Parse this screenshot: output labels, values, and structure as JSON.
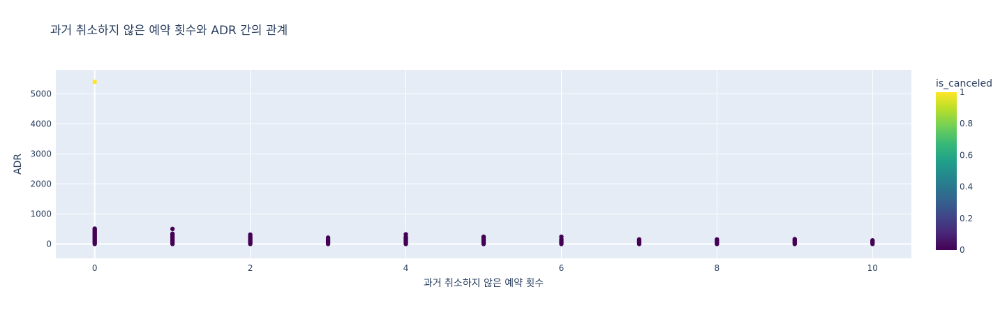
{
  "chart_data": {
    "type": "scatter",
    "title": "과거 취소하지 않은 예약 횟수와 ADR 간의 관계",
    "xlabel": "과거 취소하지 않은 예약 횟수",
    "ylabel": "ADR",
    "xlim": [
      -0.5,
      10.5
    ],
    "ylim": [
      -480,
      5800
    ],
    "xticks": [
      0,
      2,
      4,
      6,
      8,
      10
    ],
    "yticks": [
      0,
      1000,
      2000,
      3000,
      4000,
      5000
    ],
    "grid": true,
    "colorbar": {
      "title": "is_canceled",
      "range": [
        0,
        1
      ],
      "ticks": [
        0,
        0.2,
        0.4,
        0.6,
        0.8,
        1
      ],
      "tick_labels": [
        "0",
        "0.2",
        "0.4",
        "0.6",
        "0.8",
        "1"
      ],
      "colorscale": "Viridis"
    },
    "colors": {
      "plot_bg": "#e5ecf6",
      "grid": "#ffffff",
      "text": "#2a3f5f"
    },
    "points": [
      {
        "x": 0,
        "y": 5400,
        "c": 1
      },
      {
        "x": 0,
        "y": 0,
        "c": 0
      },
      {
        "x": 0,
        "y": 40,
        "c": 0
      },
      {
        "x": 0,
        "y": 80,
        "c": 0
      },
      {
        "x": 0,
        "y": 120,
        "c": 0
      },
      {
        "x": 0,
        "y": 160,
        "c": 0
      },
      {
        "x": 0,
        "y": 200,
        "c": 0
      },
      {
        "x": 0,
        "y": 240,
        "c": 0
      },
      {
        "x": 0,
        "y": 280,
        "c": 0
      },
      {
        "x": 0,
        "y": 320,
        "c": 0
      },
      {
        "x": 0,
        "y": 360,
        "c": 0
      },
      {
        "x": 0,
        "y": 400,
        "c": 0
      },
      {
        "x": 0,
        "y": 440,
        "c": 0
      },
      {
        "x": 0,
        "y": 480,
        "c": 0
      },
      {
        "x": 0,
        "y": 510,
        "c": 0
      },
      {
        "x": 1,
        "y": 0,
        "c": 0
      },
      {
        "x": 1,
        "y": 50,
        "c": 0
      },
      {
        "x": 1,
        "y": 100,
        "c": 0
      },
      {
        "x": 1,
        "y": 150,
        "c": 0
      },
      {
        "x": 1,
        "y": 200,
        "c": 0
      },
      {
        "x": 1,
        "y": 250,
        "c": 0
      },
      {
        "x": 1,
        "y": 300,
        "c": 0
      },
      {
        "x": 1,
        "y": 340,
        "c": 0
      },
      {
        "x": 1,
        "y": 500,
        "c": 0
      },
      {
        "x": 2,
        "y": 0,
        "c": 0
      },
      {
        "x": 2,
        "y": 40,
        "c": 0
      },
      {
        "x": 2,
        "y": 80,
        "c": 0
      },
      {
        "x": 2,
        "y": 120,
        "c": 0
      },
      {
        "x": 2,
        "y": 160,
        "c": 0
      },
      {
        "x": 2,
        "y": 200,
        "c": 0
      },
      {
        "x": 2,
        "y": 250,
        "c": 0
      },
      {
        "x": 2,
        "y": 310,
        "c": 0
      },
      {
        "x": 3,
        "y": 0,
        "c": 0
      },
      {
        "x": 3,
        "y": 40,
        "c": 0
      },
      {
        "x": 3,
        "y": 80,
        "c": 0
      },
      {
        "x": 3,
        "y": 120,
        "c": 0
      },
      {
        "x": 3,
        "y": 160,
        "c": 0
      },
      {
        "x": 3,
        "y": 210,
        "c": 0
      },
      {
        "x": 4,
        "y": 0,
        "c": 0
      },
      {
        "x": 4,
        "y": 40,
        "c": 0
      },
      {
        "x": 4,
        "y": 80,
        "c": 0
      },
      {
        "x": 4,
        "y": 120,
        "c": 0
      },
      {
        "x": 4,
        "y": 160,
        "c": 0
      },
      {
        "x": 4,
        "y": 200,
        "c": 0
      },
      {
        "x": 4,
        "y": 230,
        "c": 0
      },
      {
        "x": 4,
        "y": 320,
        "c": 0
      },
      {
        "x": 5,
        "y": 0,
        "c": 0
      },
      {
        "x": 5,
        "y": 40,
        "c": 0
      },
      {
        "x": 5,
        "y": 80,
        "c": 0
      },
      {
        "x": 5,
        "y": 120,
        "c": 0
      },
      {
        "x": 5,
        "y": 160,
        "c": 0
      },
      {
        "x": 5,
        "y": 200,
        "c": 0
      },
      {
        "x": 5,
        "y": 240,
        "c": 0
      },
      {
        "x": 6,
        "y": 0,
        "c": 0
      },
      {
        "x": 6,
        "y": 40,
        "c": 0
      },
      {
        "x": 6,
        "y": 80,
        "c": 0
      },
      {
        "x": 6,
        "y": 120,
        "c": 0
      },
      {
        "x": 6,
        "y": 160,
        "c": 0
      },
      {
        "x": 6,
        "y": 240,
        "c": 0
      },
      {
        "x": 7,
        "y": 0,
        "c": 0
      },
      {
        "x": 7,
        "y": 40,
        "c": 0
      },
      {
        "x": 7,
        "y": 80,
        "c": 0
      },
      {
        "x": 7,
        "y": 120,
        "c": 0
      },
      {
        "x": 7,
        "y": 150,
        "c": 0
      },
      {
        "x": 8,
        "y": 0,
        "c": 0
      },
      {
        "x": 8,
        "y": 40,
        "c": 0
      },
      {
        "x": 8,
        "y": 80,
        "c": 0
      },
      {
        "x": 8,
        "y": 120,
        "c": 0
      },
      {
        "x": 8,
        "y": 150,
        "c": 0
      },
      {
        "x": 9,
        "y": 0,
        "c": 0
      },
      {
        "x": 9,
        "y": 40,
        "c": 0
      },
      {
        "x": 9,
        "y": 80,
        "c": 0
      },
      {
        "x": 9,
        "y": 120,
        "c": 0
      },
      {
        "x": 9,
        "y": 160,
        "c": 0
      },
      {
        "x": 10,
        "y": 0,
        "c": 0
      },
      {
        "x": 10,
        "y": 40,
        "c": 0
      },
      {
        "x": 10,
        "y": 80,
        "c": 0
      },
      {
        "x": 10,
        "y": 120,
        "c": 0
      }
    ]
  }
}
